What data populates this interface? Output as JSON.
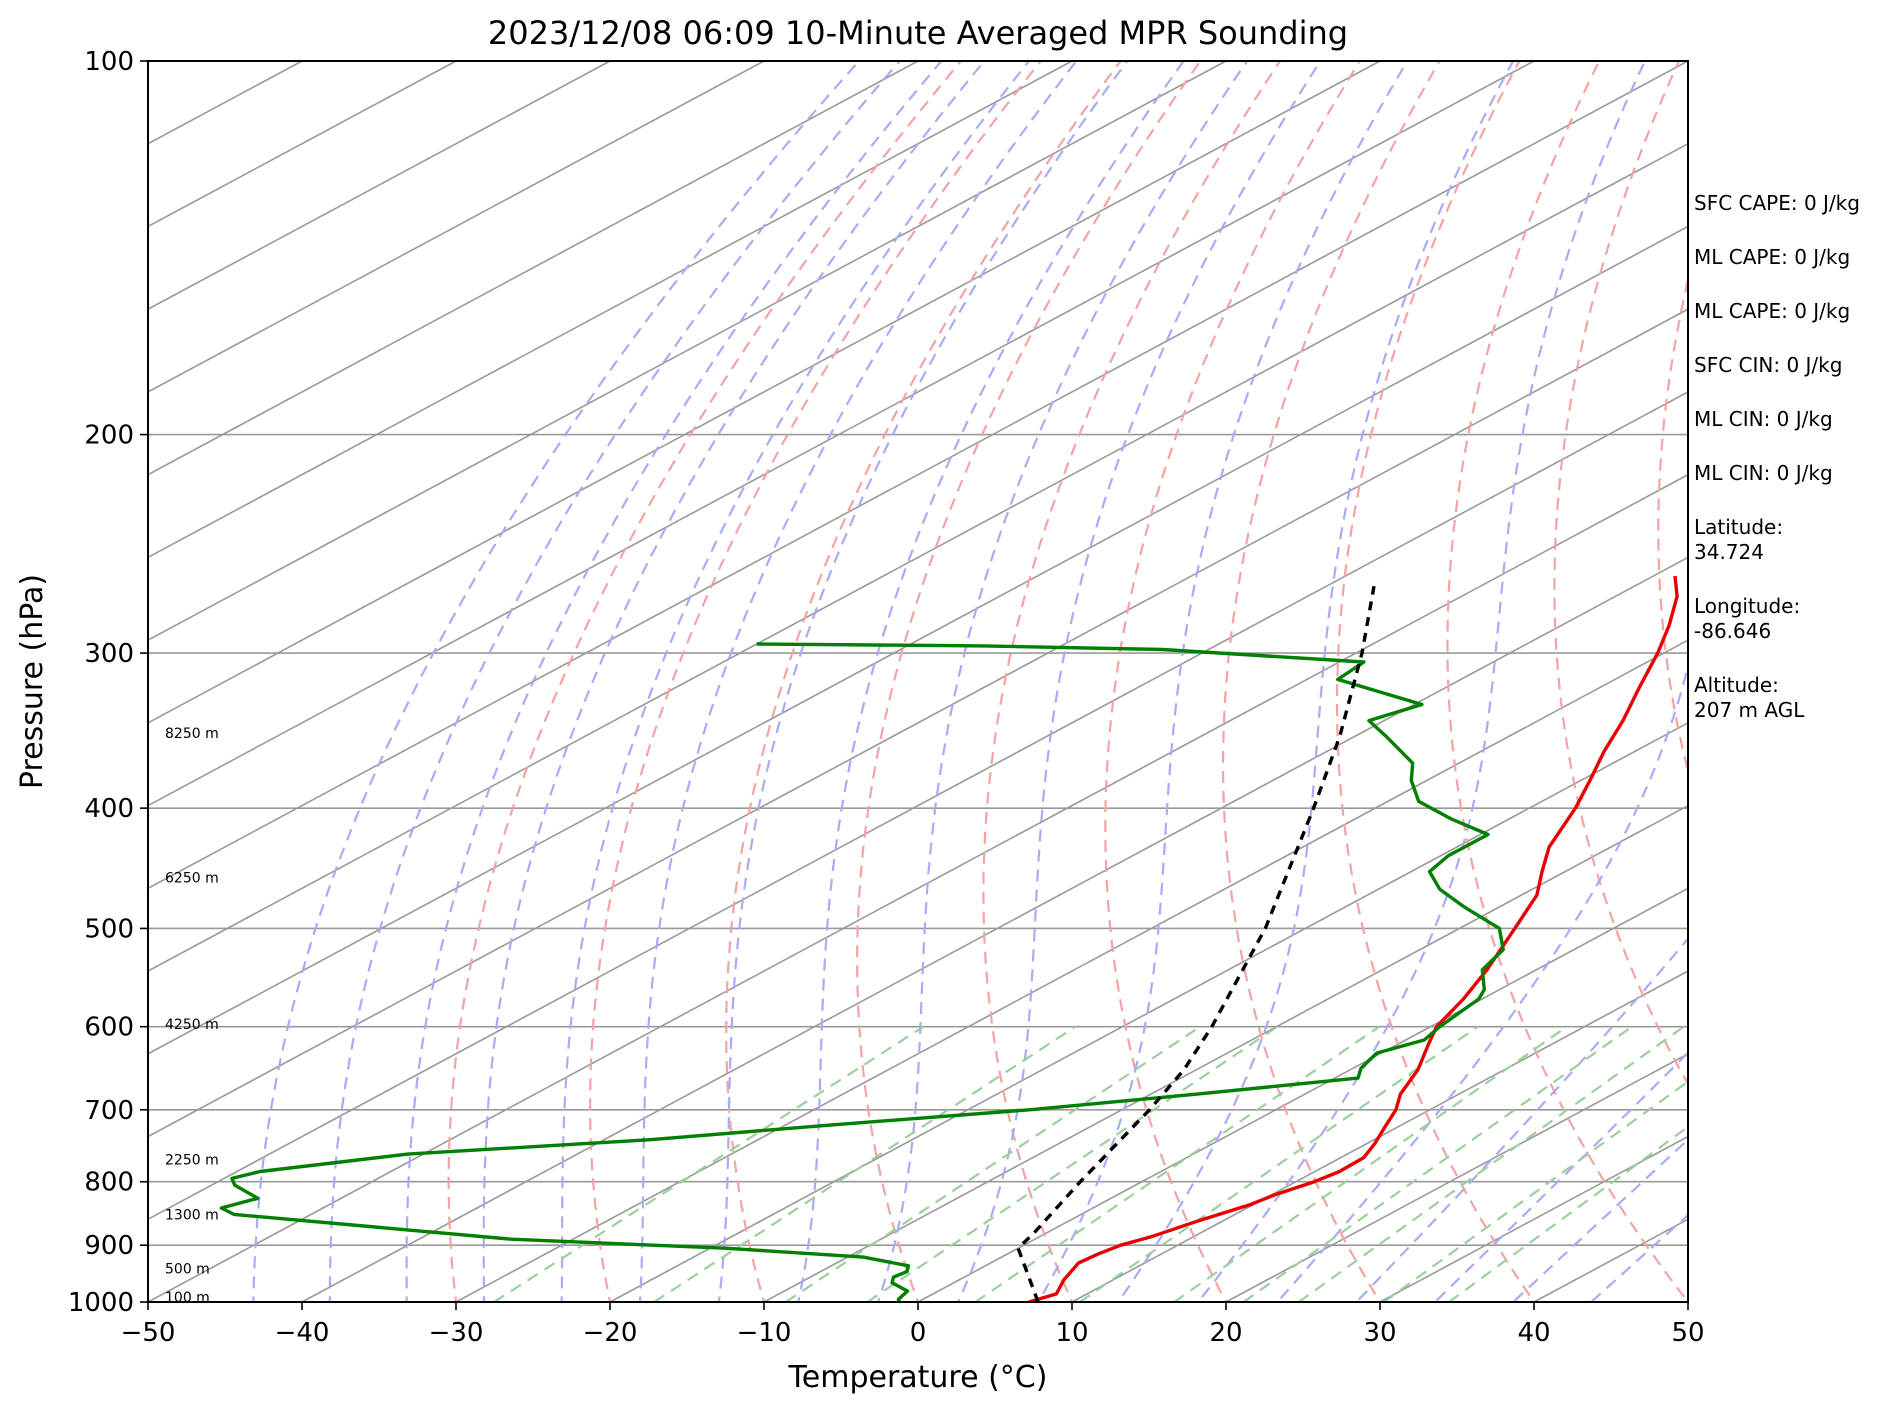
{
  "chart_data": {
    "type": "line",
    "subtype": "skew-t log-p sounding",
    "title": "2023/12/08 06:09 10-Minute Averaged MPR Sounding",
    "xlabel": "Temperature (°C)",
    "ylabel": "Pressure (hPa)",
    "xlim": [
      -50,
      50
    ],
    "ylim": [
      1000,
      100
    ],
    "y_scale": "log",
    "x_ticks": [
      "−50",
      "−40",
      "−30",
      "−20",
      "−10",
      "0",
      "10",
      "20",
      "30",
      "40",
      "50"
    ],
    "y_ticks": [
      "100",
      "200",
      "300",
      "400",
      "500",
      "600",
      "700",
      "800",
      "900",
      "1000"
    ],
    "grid": true,
    "background_lines": {
      "isotherms_color": "#999999",
      "dry_adiabats_color": "#f4a3a3",
      "moist_adiabats_color": "#aaaaf5",
      "mixing_ratio_color": "#9ccf9c"
    },
    "series": [
      {
        "color": "#e80000",
        "points": [
          {
            "p": 1000,
            "t": 7.2
          },
          {
            "p": 985,
            "t": 8.0
          },
          {
            "p": 960,
            "t": 6.8
          },
          {
            "p": 930,
            "t": 5.7
          },
          {
            "p": 915,
            "t": 5.9
          },
          {
            "p": 900,
            "t": 6.3
          },
          {
            "p": 885,
            "t": 7.3
          },
          {
            "p": 860,
            "t": 8.4
          },
          {
            "p": 835,
            "t": 9.8
          },
          {
            "p": 820,
            "t": 10.2
          },
          {
            "p": 800,
            "t": 11.2
          },
          {
            "p": 785,
            "t": 11.6
          },
          {
            "p": 765,
            "t": 11.5
          },
          {
            "p": 745,
            "t": 10.5
          },
          {
            "p": 720,
            "t": 9.0
          },
          {
            "p": 700,
            "t": 7.8
          },
          {
            "p": 680,
            "t": 6.2
          },
          {
            "p": 650,
            "t": 4.4
          },
          {
            "p": 620,
            "t": 2.0
          },
          {
            "p": 600,
            "t": 0.4
          },
          {
            "p": 570,
            "t": -1.2
          },
          {
            "p": 540,
            "t": -3.2
          },
          {
            "p": 500,
            "t": -6.4
          },
          {
            "p": 470,
            "t": -9.0
          },
          {
            "p": 450,
            "t": -11.5
          },
          {
            "p": 430,
            "t": -14.0
          },
          {
            "p": 400,
            "t": -17.0
          },
          {
            "p": 380,
            "t": -19.4
          },
          {
            "p": 360,
            "t": -22.0
          },
          {
            "p": 340,
            "t": -24.5
          },
          {
            "p": 320,
            "t": -27.4
          },
          {
            "p": 300,
            "t": -30.4
          },
          {
            "p": 285,
            "t": -33.0
          },
          {
            "p": 270,
            "t": -36.0
          },
          {
            "p": 260,
            "t": -38.6
          }
        ]
      },
      {
        "color": "#007f00",
        "points": [
          {
            "p": 1000,
            "t": -1.2
          },
          {
            "p": 995,
            "t": -1.6
          },
          {
            "p": 980,
            "t": -2.0
          },
          {
            "p": 965,
            "t": -4.0
          },
          {
            "p": 955,
            "t": -4.6
          },
          {
            "p": 945,
            "t": -4.4
          },
          {
            "p": 935,
            "t": -5.0
          },
          {
            "p": 920,
            "t": -9.0
          },
          {
            "p": 905,
            "t": -19.0
          },
          {
            "p": 890,
            "t": -34.0
          },
          {
            "p": 850,
            "t": -55.0
          },
          {
            "p": 840,
            "t": -56.6
          },
          {
            "p": 825,
            "t": -55.4
          },
          {
            "p": 805,
            "t": -58.5
          },
          {
            "p": 795,
            "t": -59.5
          },
          {
            "p": 785,
            "t": -58.5
          },
          {
            "p": 760,
            "t": -51.0
          },
          {
            "p": 740,
            "t": -37.0
          },
          {
            "p": 720,
            "t": -27.0
          },
          {
            "p": 700,
            "t": -16.0
          },
          {
            "p": 680,
            "t": -7.0
          },
          {
            "p": 660,
            "t": 1.5
          },
          {
            "p": 648,
            "t": 0.5
          },
          {
            "p": 630,
            "t": -0.3
          },
          {
            "p": 615,
            "t": 1.2
          },
          {
            "p": 600,
            "t": 0.6
          },
          {
            "p": 570,
            "t": -0.2
          },
          {
            "p": 560,
            "t": -1.0
          },
          {
            "p": 540,
            "t": -3.5
          },
          {
            "p": 520,
            "t": -4.6
          },
          {
            "p": 500,
            "t": -7.4
          },
          {
            "p": 480,
            "t": -12.4
          },
          {
            "p": 465,
            "t": -16.0
          },
          {
            "p": 450,
            "t": -18.8
          },
          {
            "p": 437,
            "t": -19.5
          },
          {
            "p": 420,
            "t": -19.5
          },
          {
            "p": 408,
            "t": -23.8
          },
          {
            "p": 395,
            "t": -28.0
          },
          {
            "p": 380,
            "t": -31.0
          },
          {
            "p": 368,
            "t": -33.0
          },
          {
            "p": 350,
            "t": -38.0
          },
          {
            "p": 340,
            "t": -41.0
          },
          {
            "p": 330,
            "t": -39.5
          },
          {
            "p": 315,
            "t": -48.0
          },
          {
            "p": 305,
            "t": -48.4
          },
          {
            "p": 298,
            "t": -63.0
          },
          {
            "p": 296,
            "t": -75.0
          },
          {
            "p": 295,
            "t": -90.0
          }
        ]
      },
      {
        "color": "#000000",
        "dashed": true,
        "points": [
          {
            "p": 1000,
            "t": 7.8
          },
          {
            "p": 905,
            "t": 0.0
          },
          {
            "p": 880,
            "t": -0.8
          },
          {
            "p": 800,
            "t": -4.0
          },
          {
            "p": 700,
            "t": -8.2
          },
          {
            "p": 650,
            "t": -10.8
          },
          {
            "p": 600,
            "t": -14.2
          },
          {
            "p": 500,
            "t": -22.6
          },
          {
            "p": 400,
            "t": -34.0
          },
          {
            "p": 350,
            "t": -41.0
          },
          {
            "p": 300,
            "t": -49.6
          },
          {
            "p": 265,
            "t": -56.9
          }
        ]
      }
    ],
    "height_markers": [
      {
        "p": 991,
        "label": "100 m"
      },
      {
        "p": 940,
        "label": "500 m"
      },
      {
        "p": 850,
        "label": "1300 m"
      },
      {
        "p": 768,
        "label": "2250 m"
      },
      {
        "p": 597,
        "label": "4250 m"
      },
      {
        "p": 455,
        "label": "6250 m"
      },
      {
        "p": 348,
        "label": "8250 m"
      }
    ]
  },
  "info_panel": [
    "SFC CAPE: 0 J/kg",
    "ML CAPE: 0 J/kg",
    "ML CAPE: 0 J/kg",
    "SFC CIN: 0 J/kg",
    "ML CIN: 0 J/kg",
    "ML CIN: 0 J/kg",
    "Latitude:\n34.724",
    "Longitude:\n-86.646",
    "Altitude:\n207 m AGL"
  ]
}
